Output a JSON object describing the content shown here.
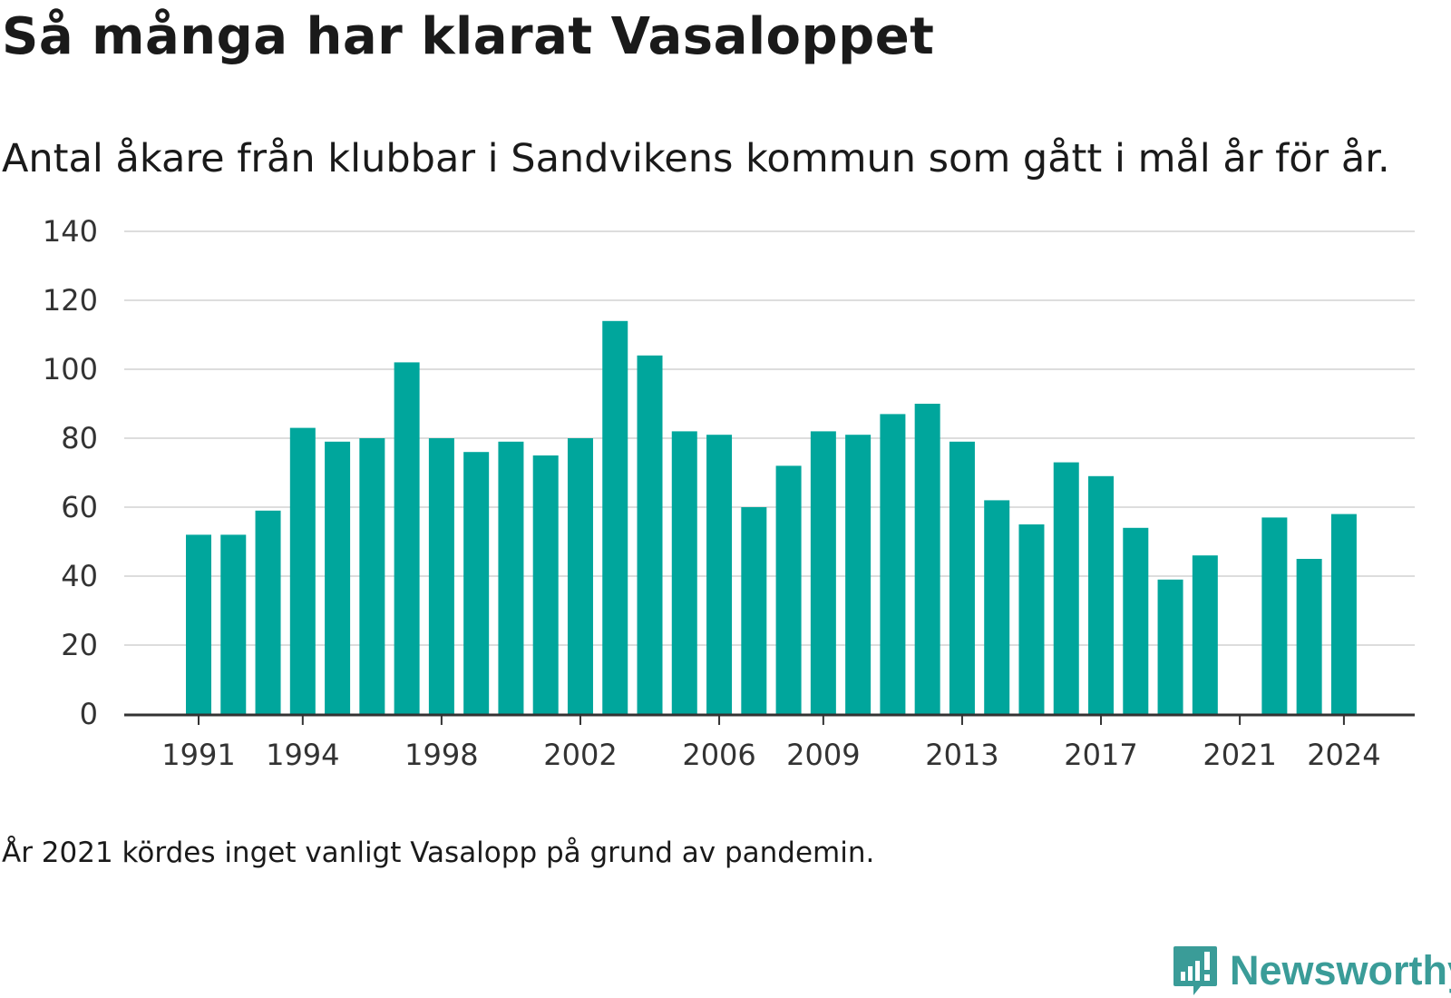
{
  "title": "Så många har klarat Vasaloppet",
  "subtitle": "Antal åkare från klubbar i Sandvikens kommun som gått i mål år för år.",
  "footnote": "År 2021 kördes inget vanligt Vasalopp på grund av pandemin.",
  "brand": {
    "name": "Newsworthy",
    "icon": "newsworthy-logo-icon"
  },
  "colors": {
    "bar": "#00a69c",
    "grid": "#dddddd",
    "axis": "#333333",
    "brand": "#3a9c98"
  },
  "chart_data": {
    "type": "bar",
    "categories": [
      "1991",
      "1992",
      "1993",
      "1994",
      "1995",
      "1996",
      "1997",
      "1998",
      "1999",
      "2000",
      "2001",
      "2002",
      "2003",
      "2004",
      "2005",
      "2006",
      "2007",
      "2008",
      "2009",
      "2010",
      "2011",
      "2012",
      "2013",
      "2014",
      "2015",
      "2016",
      "2017",
      "2018",
      "2019",
      "2020",
      "2021",
      "2022",
      "2023",
      "2024"
    ],
    "values": [
      52,
      52,
      59,
      83,
      79,
      80,
      102,
      80,
      76,
      79,
      75,
      80,
      114,
      104,
      82,
      81,
      60,
      72,
      82,
      81,
      87,
      90,
      79,
      62,
      55,
      73,
      69,
      54,
      39,
      46,
      null,
      57,
      45,
      58
    ],
    "xticks": [
      "1991",
      "1994",
      "1998",
      "2002",
      "2006",
      "2009",
      "2013",
      "2017",
      "2021",
      "2024"
    ],
    "yticks": [
      0,
      20,
      40,
      60,
      80,
      100,
      120,
      140
    ],
    "ylim": [
      0,
      140
    ],
    "grid": true,
    "xlabel": "",
    "ylabel": ""
  }
}
